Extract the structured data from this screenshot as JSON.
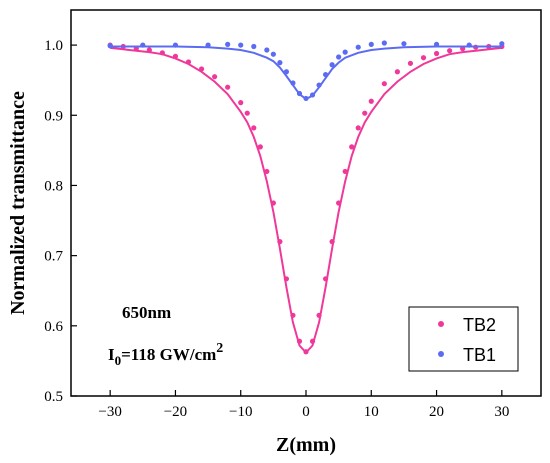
{
  "chart_data": {
    "type": "scatter",
    "xlabel": "Z(mm)",
    "ylabel": "Normalized transmittance",
    "xlim": [
      -36,
      36
    ],
    "ylim": [
      0.5,
      1.05
    ],
    "xticks": [
      -30,
      -20,
      -10,
      0,
      10,
      20,
      30
    ],
    "yticks": [
      0.5,
      0.6,
      0.7,
      0.8,
      0.9,
      1.0
    ],
    "xtick_labels": [
      "−30",
      "−20",
      "−10",
      "0",
      "10",
      "20",
      "30"
    ],
    "ytick_labels": [
      "0.5",
      "0.6",
      "0.7",
      "0.8",
      "0.9",
      "1.0"
    ],
    "grid": false,
    "legend_position": "bottom-right",
    "annotations": {
      "wavelength": "650nm",
      "intensity_main": "I",
      "intensity_sub": "0",
      "intensity_value": "=118 GW/cm",
      "intensity_sup": "2"
    },
    "series": [
      {
        "name": "TB2",
        "color": "#f0389a",
        "marker": "circle",
        "x": [
          -30,
          -28,
          -26,
          -24,
          -22,
          -20,
          -18,
          -16,
          -14,
          -12,
          -10,
          -9,
          -8,
          -7,
          -6,
          -5,
          -4,
          -3,
          -2,
          -1,
          0,
          1,
          2,
          3,
          4,
          5,
          6,
          7,
          8,
          9,
          10,
          12,
          14,
          16,
          18,
          20,
          22,
          24,
          26,
          28,
          30
        ],
        "y": [
          1.0,
          0.998,
          0.995,
          0.993,
          0.989,
          0.984,
          0.976,
          0.966,
          0.955,
          0.94,
          0.918,
          0.903,
          0.882,
          0.855,
          0.82,
          0.775,
          0.72,
          0.667,
          0.615,
          0.578,
          0.563,
          0.578,
          0.615,
          0.667,
          0.72,
          0.775,
          0.82,
          0.855,
          0.882,
          0.903,
          0.92,
          0.945,
          0.962,
          0.974,
          0.982,
          0.988,
          0.992,
          0.995,
          0.997,
          0.998,
          0.998
        ],
        "fit_y": [
          0.996,
          0.994,
          0.992,
          0.99,
          0.987,
          0.981,
          0.973,
          0.962,
          0.948,
          0.93,
          0.905,
          0.89,
          0.869,
          0.842,
          0.806,
          0.762,
          0.71,
          0.655,
          0.605,
          0.572,
          0.562,
          0.572,
          0.605,
          0.655,
          0.71,
          0.762,
          0.806,
          0.842,
          0.869,
          0.89,
          0.905,
          0.93,
          0.948,
          0.962,
          0.973,
          0.981,
          0.987,
          0.99,
          0.992,
          0.994,
          0.996
        ]
      },
      {
        "name": "TB1",
        "color": "#5b6cf3",
        "marker": "circle",
        "x": [
          -30,
          -25,
          -20,
          -15,
          -12,
          -10,
          -8,
          -6,
          -5,
          -4,
          -3,
          -2,
          -1,
          0,
          1,
          2,
          3,
          4,
          5,
          6,
          8,
          10,
          12,
          15,
          20,
          25,
          30
        ],
        "y": [
          0.999,
          1.0,
          1.0,
          1.0,
          1.001,
          1.0,
          0.998,
          0.993,
          0.987,
          0.975,
          0.962,
          0.946,
          0.931,
          0.924,
          0.929,
          0.943,
          0.958,
          0.972,
          0.983,
          0.99,
          0.997,
          1.001,
          1.003,
          1.002,
          1.001,
          1.0,
          1.002
        ],
        "fit_y": [
          0.998,
          0.998,
          0.998,
          0.997,
          0.995,
          0.993,
          0.989,
          0.982,
          0.977,
          0.968,
          0.956,
          0.943,
          0.93,
          0.923,
          0.928,
          0.94,
          0.953,
          0.966,
          0.975,
          0.982,
          0.989,
          0.993,
          0.995,
          0.997,
          0.998,
          0.998,
          0.998
        ]
      }
    ]
  }
}
